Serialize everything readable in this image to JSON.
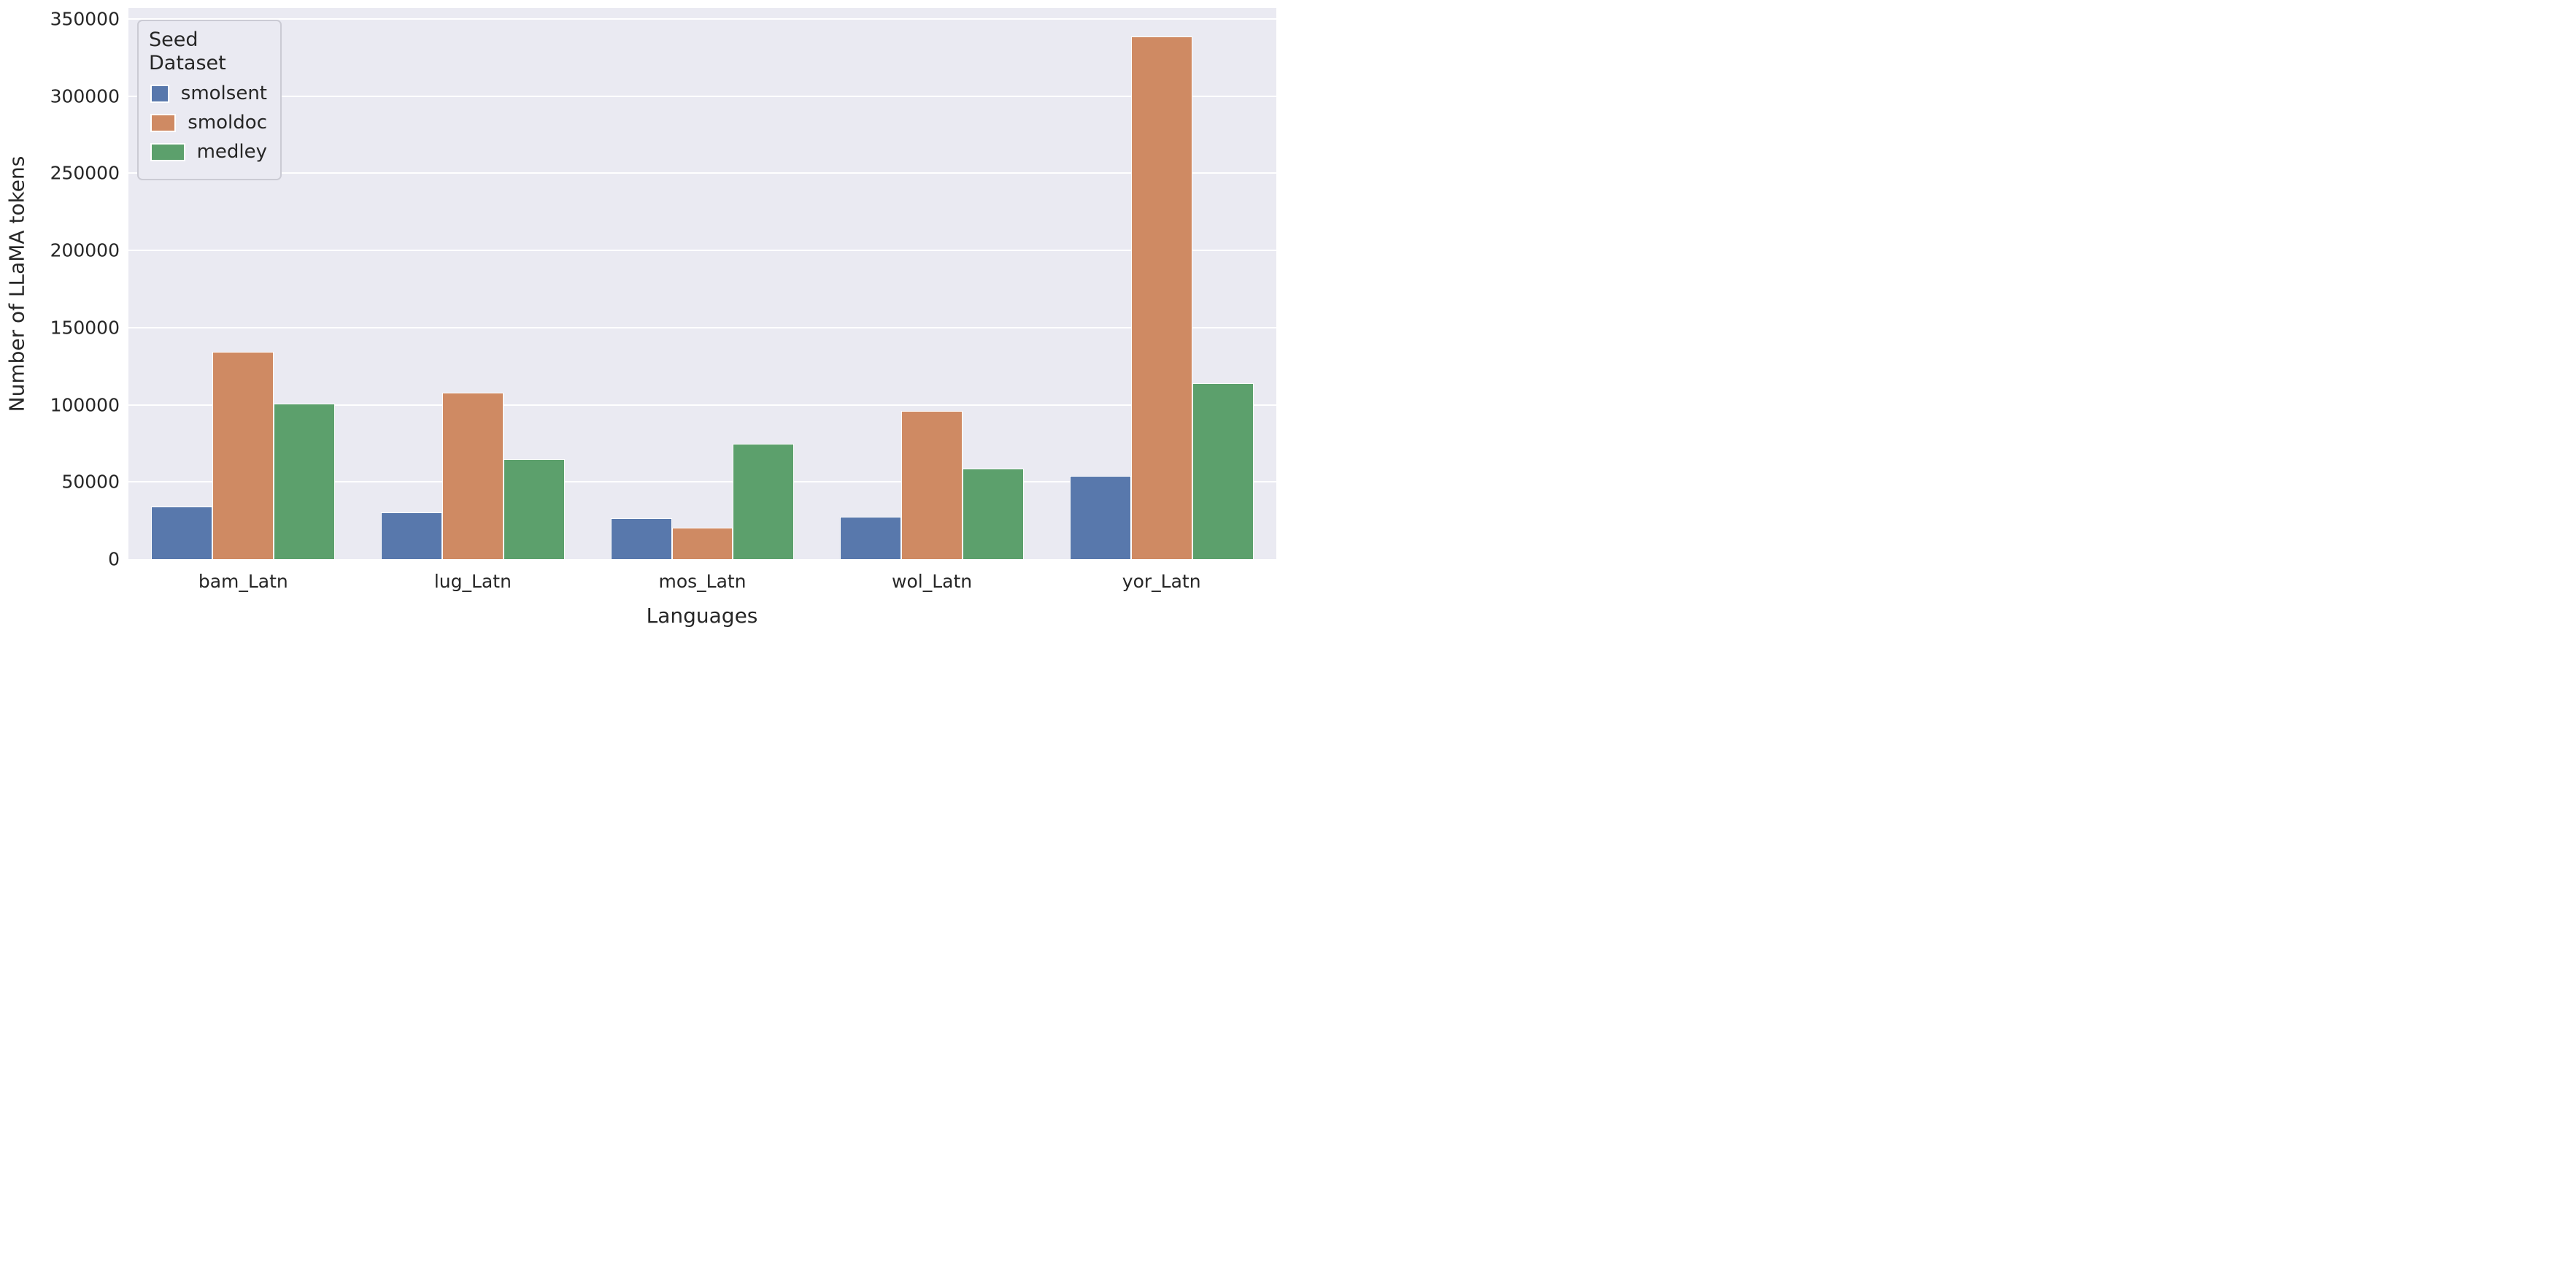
{
  "figure": {
    "background": "#ffffff",
    "plot_background": "#EAEAF2",
    "grid_color": "#ffffff",
    "text_color": "#262626",
    "legend_border_color": "#CBCBD4"
  },
  "chart_data": {
    "type": "bar",
    "title": "",
    "xlabel": "Languages",
    "ylabel": "Number of LLaMA tokens",
    "categories": [
      "bam_Latn",
      "lug_Latn",
      "mos_Latn",
      "wol_Latn",
      "yor_Latn"
    ],
    "series": [
      {
        "name": "smolsent",
        "color": "#5878AC",
        "values": [
          34000,
          30500,
          26500,
          27500,
          54000
        ]
      },
      {
        "name": "smoldoc",
        "color": "#CF8A63",
        "values": [
          134500,
          108000,
          20500,
          96000,
          338500
        ]
      },
      {
        "name": "medley",
        "color": "#5CA06C",
        "values": [
          100500,
          65000,
          74500,
          58500,
          114000
        ]
      }
    ],
    "yticks": [
      0,
      50000,
      100000,
      150000,
      200000,
      250000,
      300000,
      350000
    ],
    "ylim": [
      0,
      357000
    ],
    "grid": true,
    "group_width_fraction": 0.8,
    "legend": {
      "title": "Seed Dataset",
      "position": "upper left"
    }
  }
}
